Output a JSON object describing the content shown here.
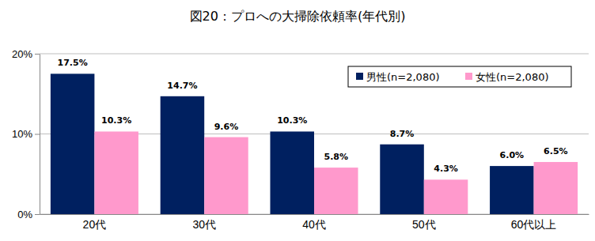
{
  "chart_data": {
    "type": "bar",
    "title": "図20：プロへの大掃除依頼率(年代別)",
    "categories": [
      "20代",
      "30代",
      "40代",
      "50代",
      "60代以上"
    ],
    "series": [
      {
        "name": "男性(n=2,080)",
        "color": "#002060",
        "values": [
          17.5,
          14.7,
          10.3,
          8.7,
          6.0
        ],
        "value_labels": [
          "17.5%",
          "14.7%",
          "10.3%",
          "8.7%",
          "6.0%"
        ]
      },
      {
        "name": "女性(n=2,080)",
        "color": "#ff99cc",
        "values": [
          10.3,
          9.6,
          5.8,
          4.3,
          6.5
        ],
        "value_labels": [
          "10.3%",
          "9.6%",
          "5.8%",
          "4.3%",
          "6.5%"
        ]
      }
    ],
    "ylim": [
      0,
      20
    ],
    "yticks": [
      {
        "value": 0,
        "label": "0%"
      },
      {
        "value": 10,
        "label": "10%"
      },
      {
        "value": 20,
        "label": "20%"
      }
    ],
    "grid": true,
    "legend": "upper right",
    "data_labels": true
  }
}
